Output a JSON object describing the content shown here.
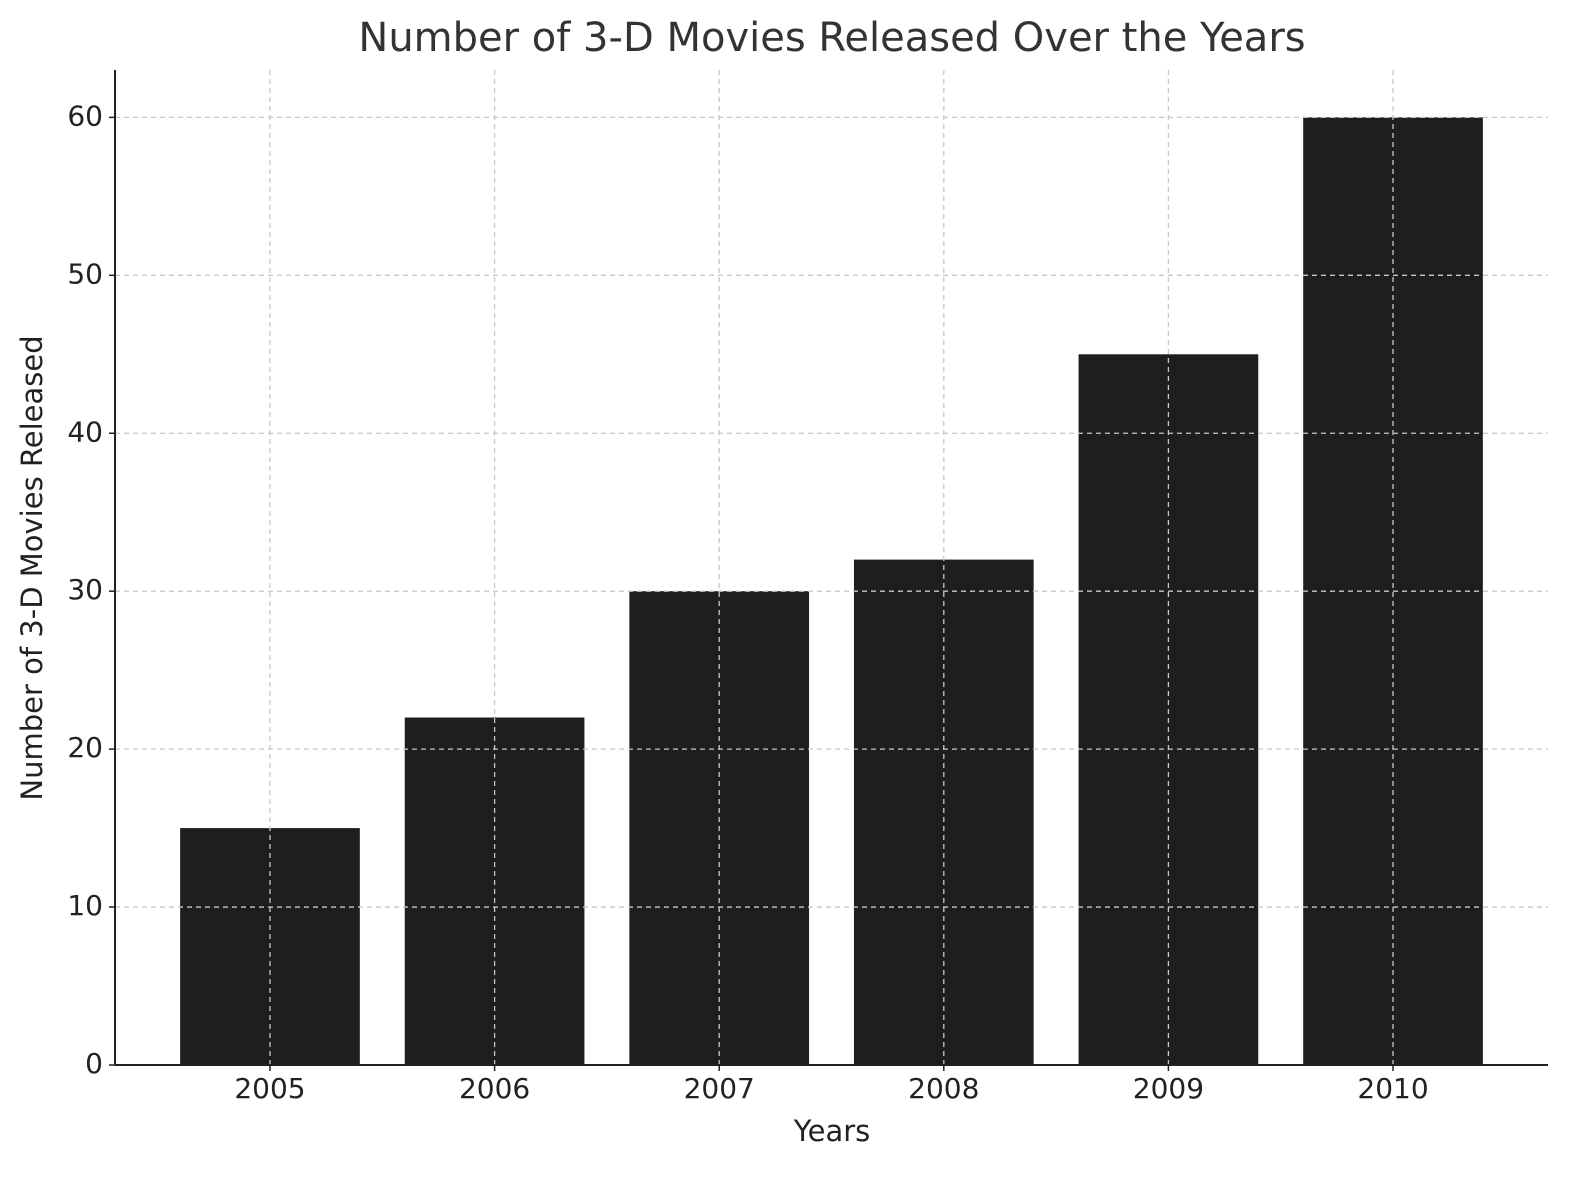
{
  "chart_data": {
    "type": "bar",
    "title": "Number of 3-D Movies Released Over the Years",
    "x_label": "Years",
    "y_label": "Number of 3-D Movies Released",
    "categories": [
      "2005",
      "2006",
      "2007",
      "2008",
      "2009",
      "2010"
    ],
    "values": [
      15,
      22,
      30,
      32,
      45,
      60
    ],
    "color": "#1e1e1e",
    "ylim": [
      0,
      63
    ],
    "yticks": [
      0,
      10,
      20,
      30,
      40,
      50,
      60
    ],
    "grid": true
  }
}
